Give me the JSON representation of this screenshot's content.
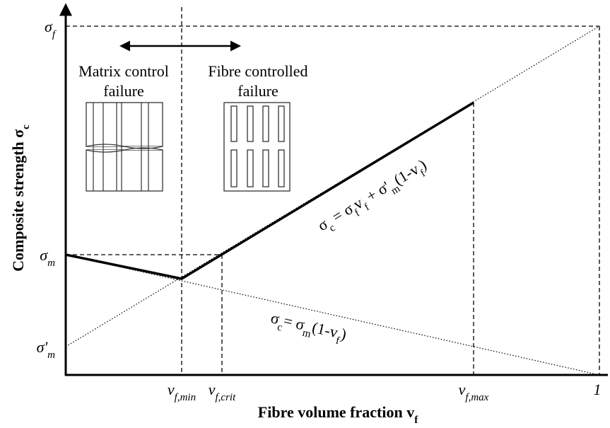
{
  "y_axis_label": [
    {
      "text": "Composite strength "
    },
    {
      "text": "σ"
    },
    {
      "sub": "c"
    }
  ],
  "x_axis_label": [
    {
      "text": "Fibre volume fraction "
    },
    {
      "text": "v"
    },
    {
      "sub": "f"
    }
  ],
  "y_labels": [
    [
      {
        "text": "σ"
      },
      {
        "sub": "f"
      }
    ],
    [
      {
        "text": "σ"
      },
      {
        "sub": "m"
      }
    ],
    [
      {
        "text": "σ'"
      },
      {
        "sub": "m"
      }
    ]
  ],
  "x_labels": [
    [
      {
        "text": "v"
      },
      {
        "sub": "f,min"
      }
    ],
    [
      {
        "text": "v"
      },
      {
        "sub": "f,crit"
      }
    ],
    [
      {
        "text": "v"
      },
      {
        "sub": "f,max"
      }
    ],
    [
      {
        "text": "1"
      }
    ]
  ],
  "annotations": {
    "matrix": [
      "Matrix control",
      "failure"
    ],
    "fibre": [
      "Fibre controlled",
      "failure"
    ]
  },
  "equations": [
    [
      {
        "text": "σ"
      },
      {
        "sub": "c"
      },
      {
        "text": " = σ"
      },
      {
        "sub": "f"
      },
      {
        "text": "v"
      },
      {
        "sub": "f"
      },
      {
        "text": " + σ'"
      },
      {
        "sub": "m"
      },
      {
        "text": "(1-v"
      },
      {
        "sub": "f"
      },
      {
        "text": ")"
      }
    ],
    [
      {
        "text": "σ"
      },
      {
        "sub": "c"
      },
      {
        "text": "= σ"
      },
      {
        "sub": "m"
      },
      {
        "text": "(1-v"
      },
      {
        "sub": "f"
      },
      {
        "text": ")"
      }
    ]
  ]
}
